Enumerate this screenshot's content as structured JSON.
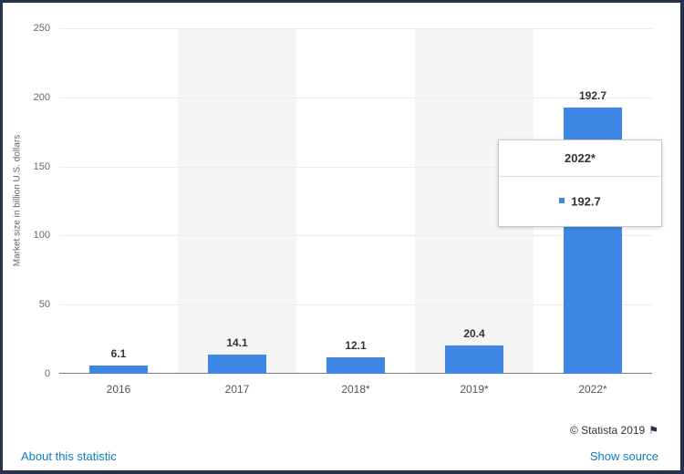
{
  "chart_data": {
    "type": "bar",
    "categories": [
      "2016",
      "2017",
      "2018*",
      "2019*",
      "2022*"
    ],
    "values": [
      6.1,
      14.1,
      12.1,
      20.4,
      192.7
    ],
    "value_labels": [
      "6.1",
      "14.1",
      "12.1",
      "20.4",
      "192.7"
    ],
    "title": "",
    "xlabel": "",
    "ylabel": "Market size in billion U.S. dollars",
    "ylim": [
      0,
      250
    ],
    "yticks": [
      0,
      50,
      100,
      150,
      200,
      250
    ],
    "grid": true,
    "legend": "none",
    "bar_color": "#3e87e4",
    "band_color": "#f5f5f5",
    "highlighted_band_indexes": [
      1,
      3
    ]
  },
  "tooltip": {
    "title": "2022*",
    "value": "192.7",
    "marker_color": "#3e87e4"
  },
  "footer": {
    "copyright": "© Statista 2019",
    "flag_icon": "⚑",
    "about_link": "About this statistic",
    "source_link": "Show source"
  }
}
